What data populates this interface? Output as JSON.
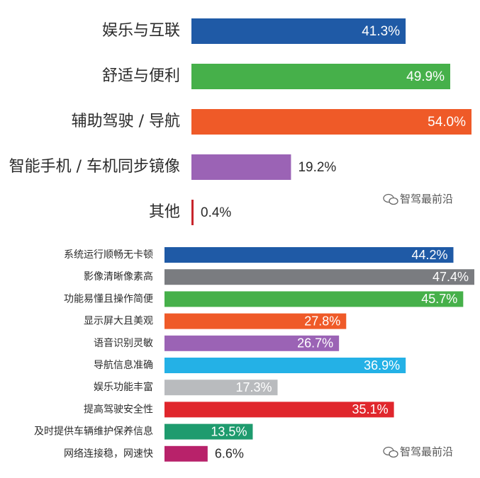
{
  "chart_data": [
    {
      "type": "bar",
      "orientation": "horizontal",
      "categories": [
        "娱乐与互联",
        "舒适与便利",
        "辅助驾驶 / 导航",
        "智能手机 / 车机同步镜像",
        "其他"
      ],
      "values": [
        41.3,
        49.9,
        54.0,
        19.2,
        0.4
      ],
      "value_labels": [
        "41.3%",
        "49.9%",
        "54.0%",
        "19.2%",
        "0.4%"
      ],
      "colors": [
        "#1f5aa6",
        "#46b04a",
        "#ef5a28",
        "#9b63b5",
        "#c8252c"
      ],
      "xlim": [
        0,
        54.0
      ]
    },
    {
      "type": "bar",
      "orientation": "horizontal",
      "categories": [
        "系统运行顺畅无卡顿",
        "影像清晰像素高",
        "功能易懂且操作简便",
        "显示屏大且美观",
        "语音识别灵敏",
        "导航信息准确",
        "娱乐功能丰富",
        "提高驾驶安全性",
        "及时提供车辆维护保养信息",
        "网络连接稳，网速快"
      ],
      "values": [
        44.2,
        47.4,
        45.7,
        27.8,
        26.7,
        36.9,
        17.3,
        35.1,
        13.5,
        6.6
      ],
      "value_labels": [
        "44.2%",
        "47.4%",
        "45.7%",
        "27.8%",
        "26.7%",
        "36.9%",
        "17.3%",
        "35.1%",
        "13.5%",
        "6.6%"
      ],
      "colors": [
        "#1f5aa6",
        "#7a7c80",
        "#46b04a",
        "#ef5a28",
        "#9b63b5",
        "#24b1e6",
        "#b9bbbe",
        "#e0262c",
        "#1e9b6e",
        "#b8226a"
      ],
      "xlim": [
        0,
        47.4
      ]
    }
  ],
  "watermarks": [
    "智驾最前沿",
    "智驾最前沿"
  ]
}
